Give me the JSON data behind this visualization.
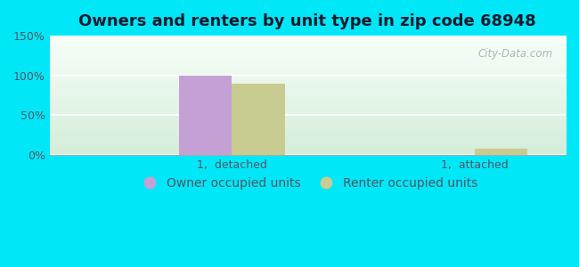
{
  "title": "Owners and renters by unit type in zip code 68948",
  "categories": [
    "1,  detached",
    "1,  attached"
  ],
  "owner_values": [
    100,
    0
  ],
  "renter_values": [
    90,
    8
  ],
  "owner_color": "#c4a0d4",
  "renter_color": "#c8cc90",
  "owner_label": "Owner occupied units",
  "renter_label": "Renter occupied units",
  "ylim": [
    0,
    150
  ],
  "yticks": [
    0,
    50,
    100,
    150
  ],
  "ytick_labels": [
    "0%",
    "50%",
    "100%",
    "150%"
  ],
  "bar_width": 0.35,
  "background_outer": "#00e8f8",
  "title_fontsize": 13,
  "tick_fontsize": 9,
  "legend_fontsize": 10,
  "tick_color": "#555566",
  "watermark": "City-Data.com"
}
